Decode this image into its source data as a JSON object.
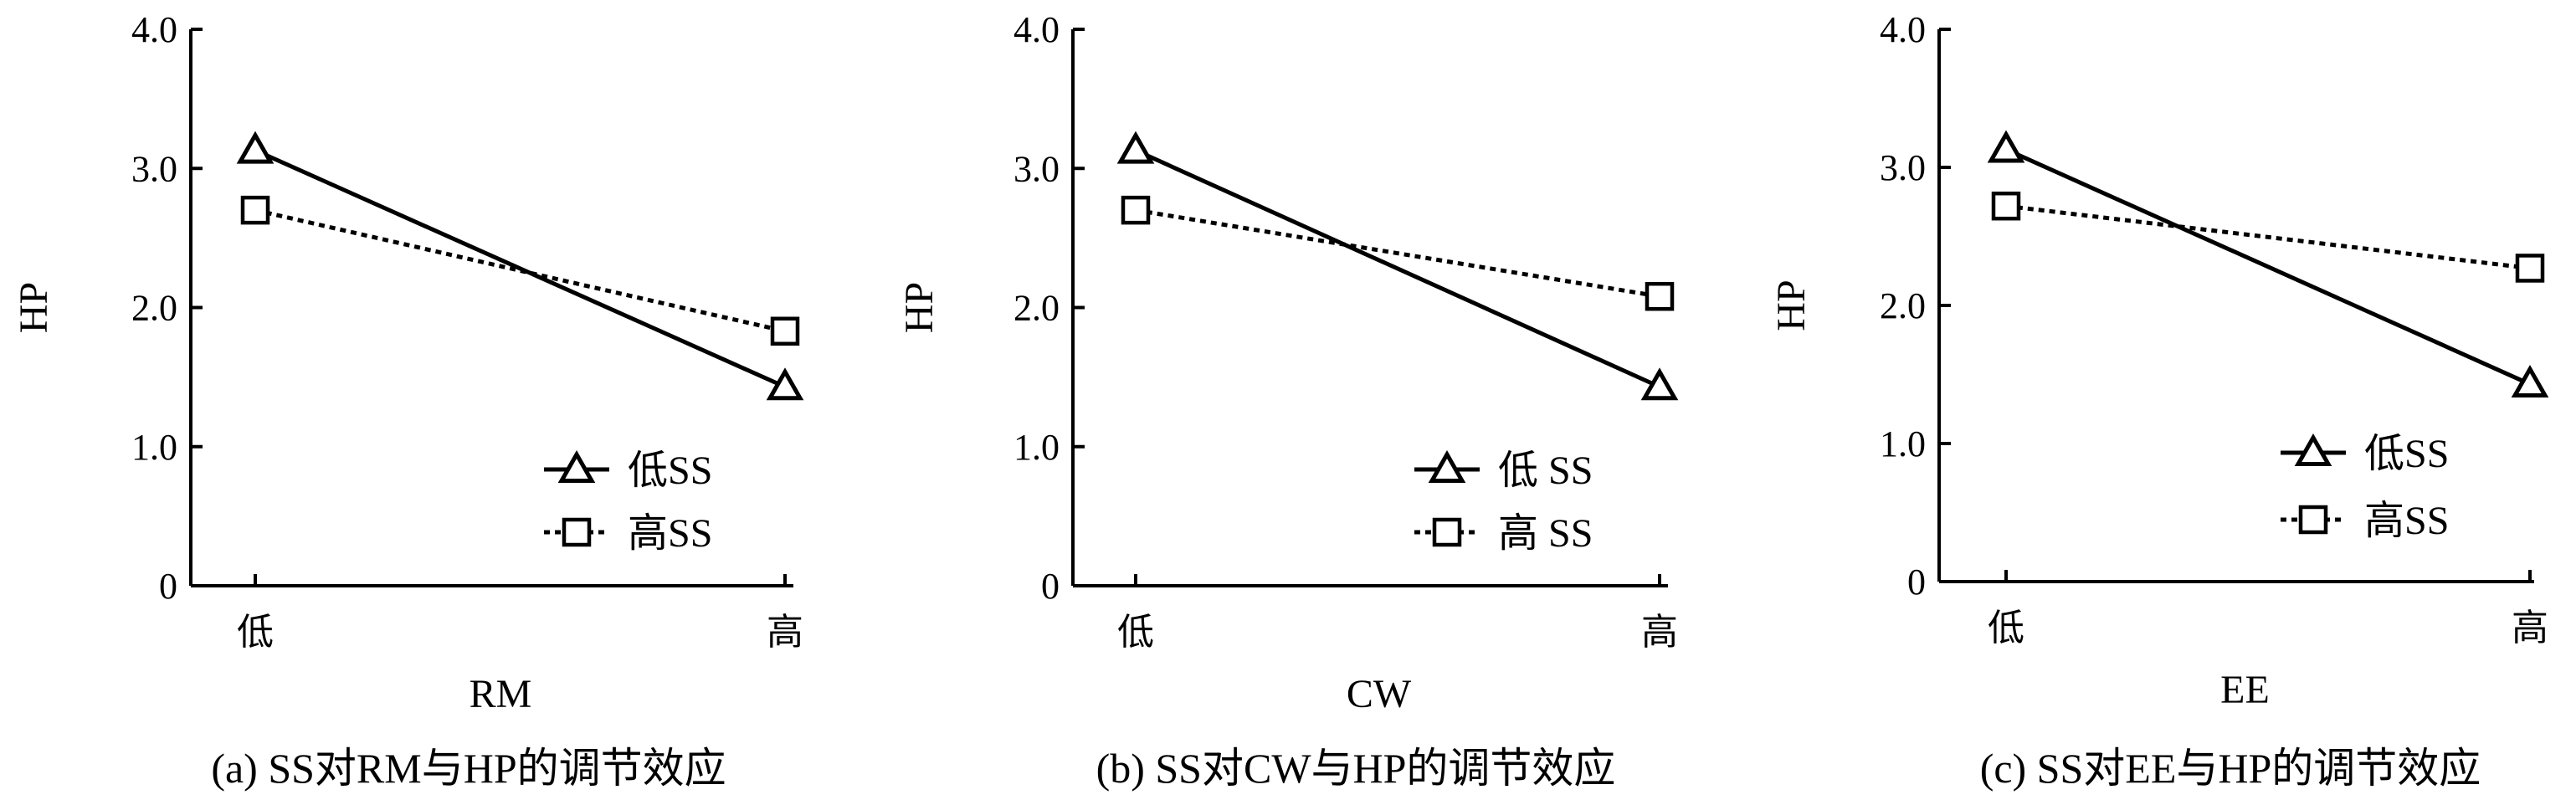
{
  "chart_data": [
    {
      "type": "line",
      "caption": "(a) SS对RM与HP的调节效应",
      "xlabel": "RM",
      "ylabel": "HP",
      "categories": [
        "低",
        "高"
      ],
      "yticks": [
        "0",
        "1.0",
        "2.0",
        "3.0",
        "4.0"
      ],
      "ylim": [
        0,
        4.0
      ],
      "legend_position": "lower-right",
      "series": [
        {
          "name": "低SS",
          "marker": "triangle",
          "line_style": "solid",
          "values": [
            3.13,
            1.43
          ]
        },
        {
          "name": "高SS",
          "marker": "square",
          "line_style": "dotted",
          "values": [
            2.7,
            1.83
          ]
        }
      ]
    },
    {
      "type": "line",
      "caption": "(b) SS对CW与HP的调节效应",
      "xlabel": "CW",
      "ylabel": "HP",
      "categories": [
        "低",
        "高"
      ],
      "yticks": [
        "0",
        "1.0",
        "2.0",
        "3.0",
        "4.0"
      ],
      "ylim": [
        0,
        4.0
      ],
      "legend_position": "lower-right",
      "series": [
        {
          "name": "低 SS",
          "marker": "triangle",
          "line_style": "solid",
          "values": [
            3.13,
            1.43
          ]
        },
        {
          "name": "高 SS",
          "marker": "square",
          "line_style": "dotted",
          "values": [
            2.7,
            2.08
          ]
        }
      ]
    },
    {
      "type": "line",
      "caption": "(c) SS对EE与HP的调节效应",
      "xlabel": "EE",
      "ylabel": "HP",
      "categories": [
        "低",
        "高"
      ],
      "yticks": [
        "0",
        "1.0",
        "2.0",
        "3.0",
        "4.0"
      ],
      "ylim": [
        0,
        4.0
      ],
      "legend_position": "lower-right",
      "series": [
        {
          "name": "低SS",
          "marker": "triangle",
          "line_style": "solid",
          "values": [
            3.13,
            1.43
          ]
        },
        {
          "name": "高SS",
          "marker": "square",
          "line_style": "dotted",
          "values": [
            2.72,
            2.27
          ]
        }
      ]
    }
  ]
}
